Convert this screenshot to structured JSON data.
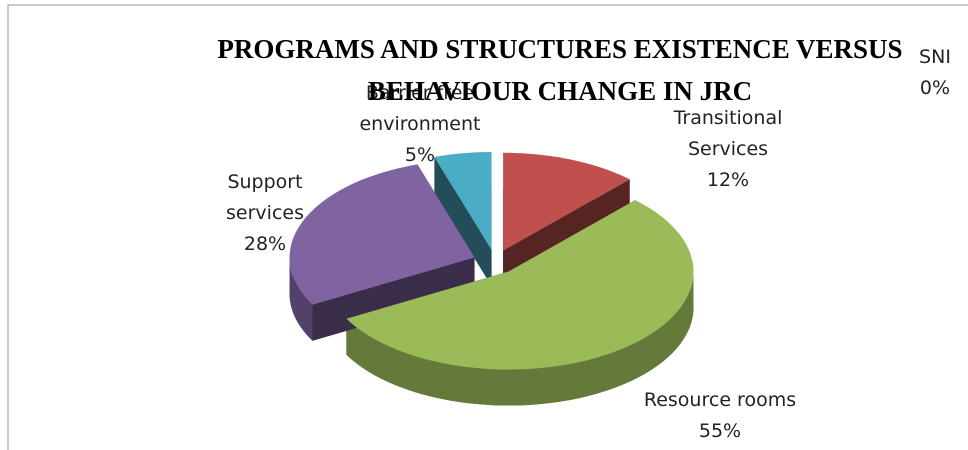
{
  "chart_data": {
    "type": "pie",
    "title": "PROGRAMS AND STRUCTURES EXISTENCE VERSUS BEHAVIOUR CHANGE IN JRC",
    "categories": [
      "SNI",
      "Transitional Services",
      "Resource rooms",
      "Support services",
      "Barrier free environment"
    ],
    "values": [
      0,
      12,
      55,
      28,
      5
    ],
    "value_labels": [
      "0%",
      "12%",
      "55%",
      "28%",
      "5%"
    ],
    "colors": [
      "#4f81bd",
      "#c0504d",
      "#9bbb59",
      "#8064a2",
      "#4bacc6"
    ]
  }
}
